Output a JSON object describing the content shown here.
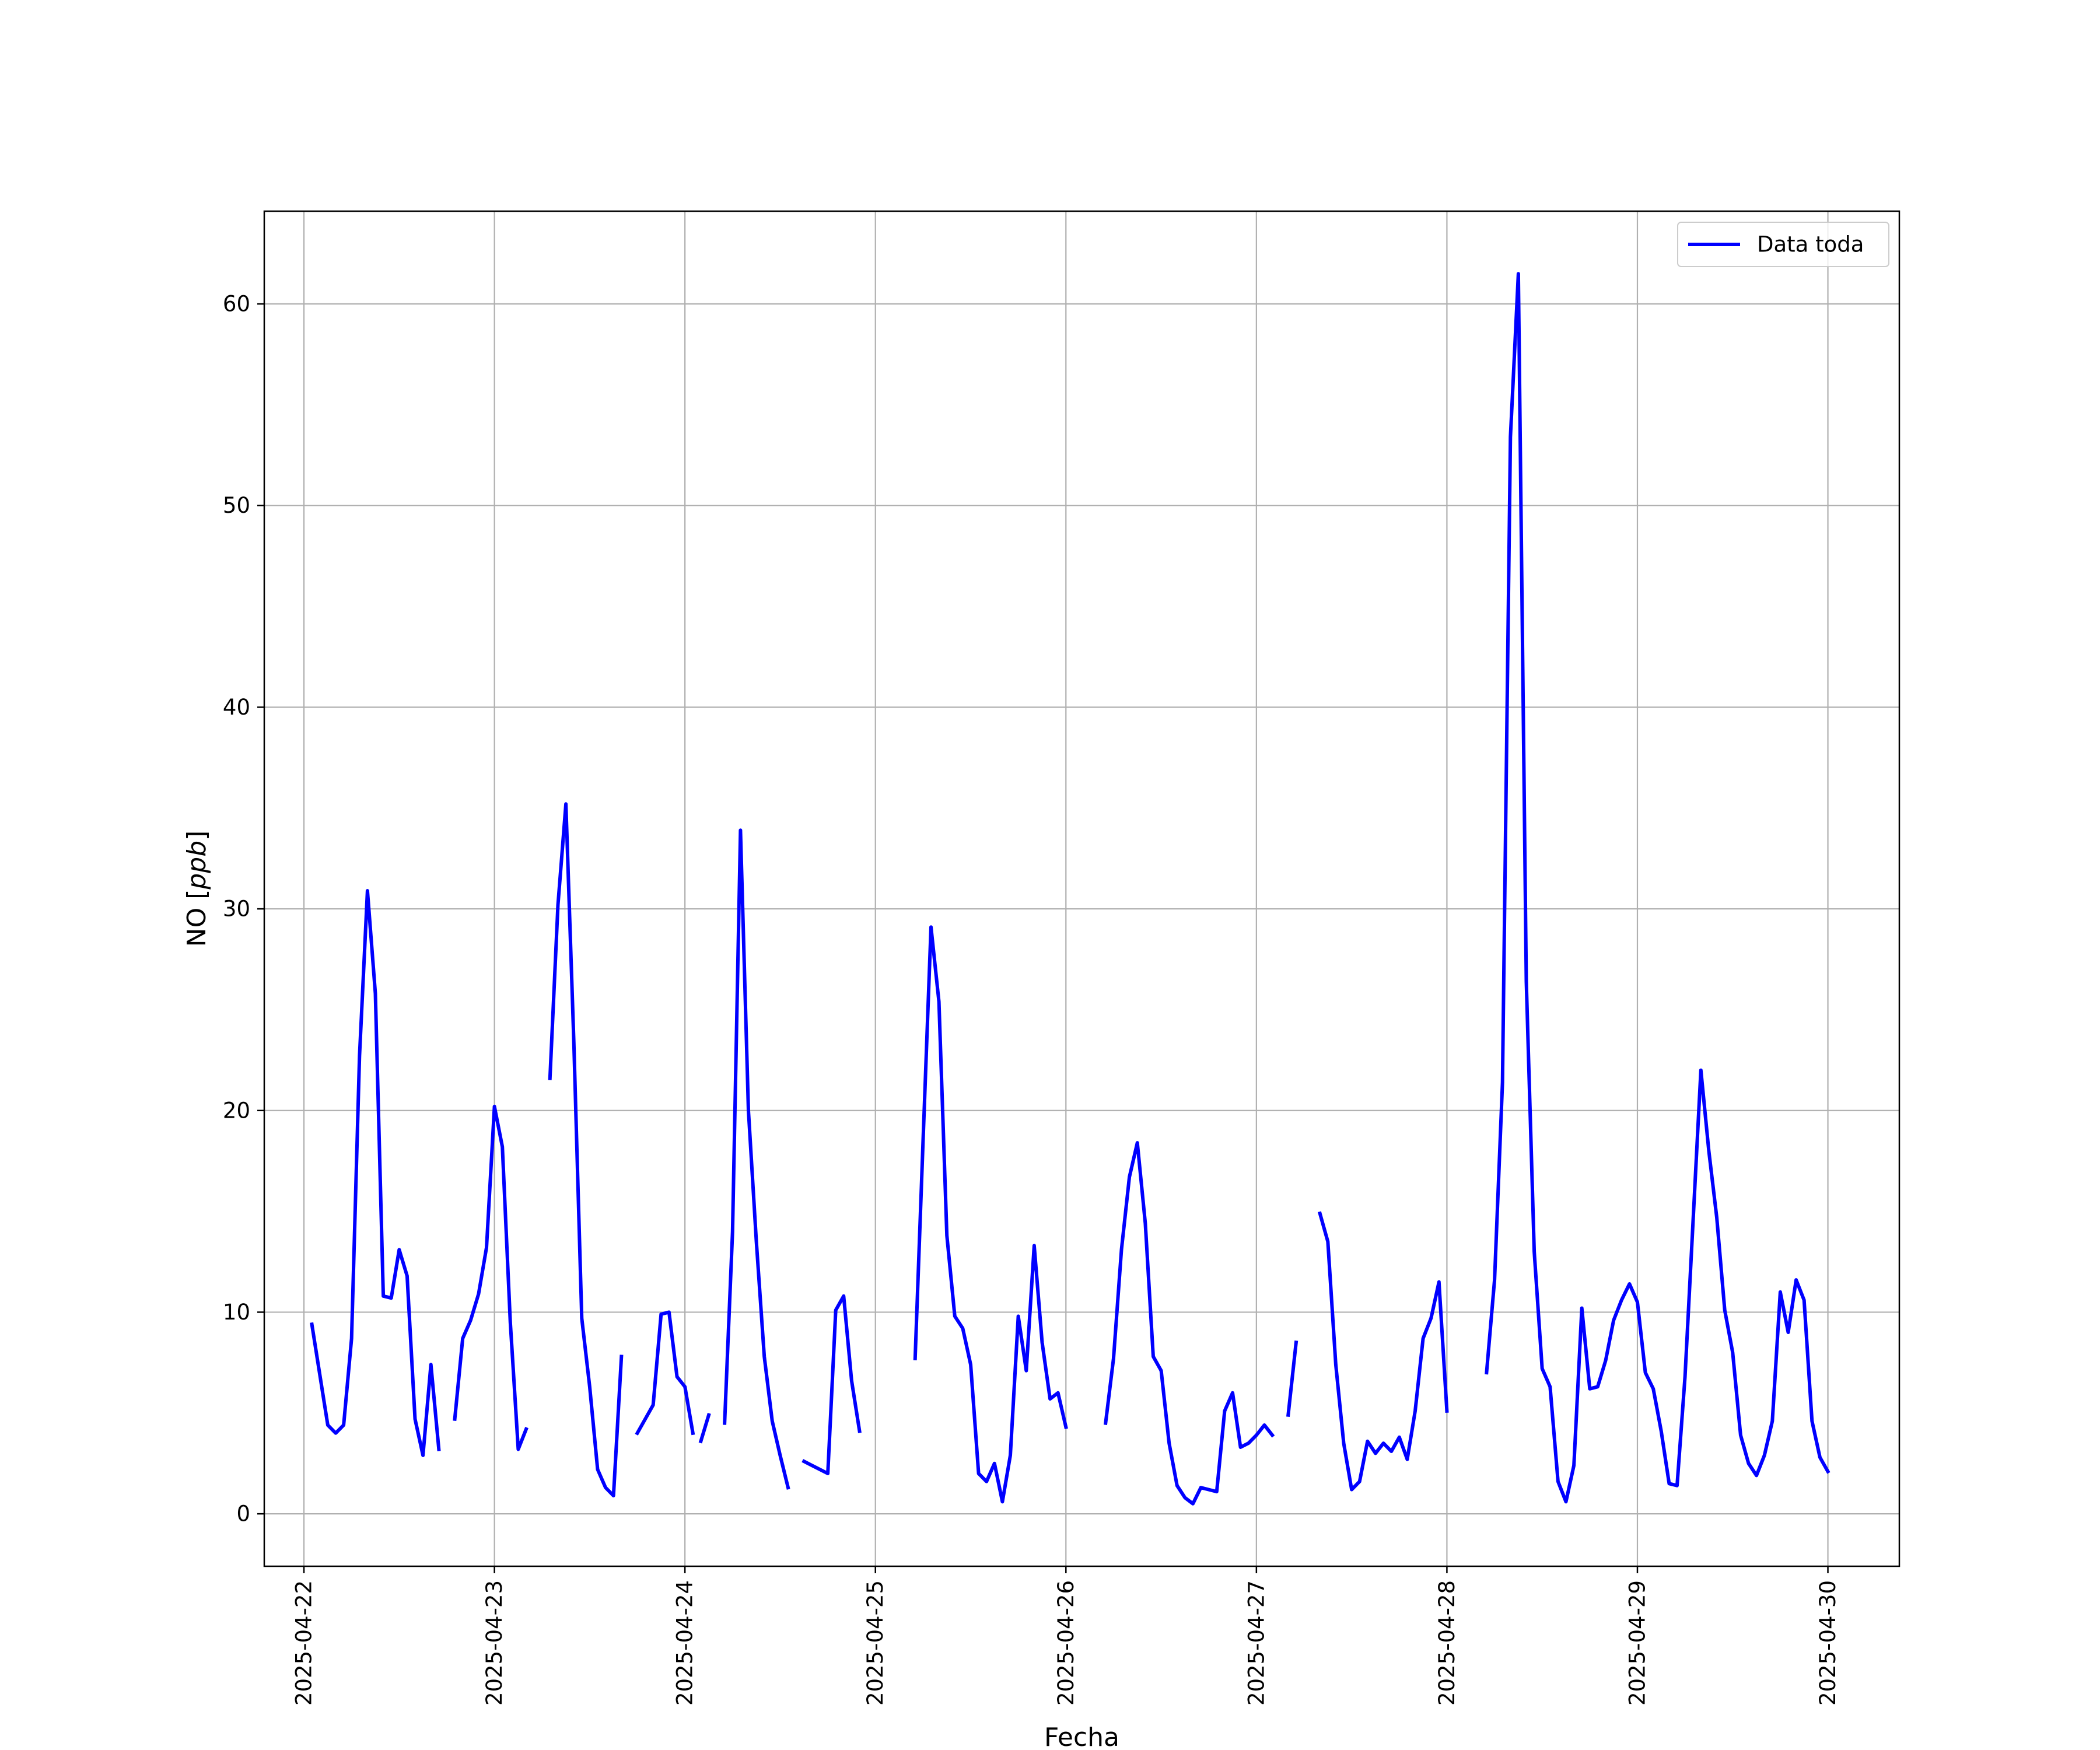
{
  "chart_data": {
    "type": "line",
    "title": "",
    "xlabel": "Fecha",
    "ylabel": "NO",
    "ylabel_unit": "ppb",
    "xlim": [
      "2025-04-21 19:00",
      "2025-04-30 09:00"
    ],
    "ylim": [
      -2.6,
      64.6
    ],
    "grid": true,
    "legend_position": "upper right",
    "x_ticks": [
      "2025-04-22",
      "2025-04-23",
      "2025-04-24",
      "2025-04-25",
      "2025-04-26",
      "2025-04-27",
      "2025-04-28",
      "2025-04-29",
      "2025-04-30"
    ],
    "y_ticks": [
      0,
      10,
      20,
      30,
      40,
      50,
      60
    ],
    "colors": {
      "line": "#0000ff",
      "grid": "#b0b0b0"
    },
    "series": [
      {
        "name": "Data toda",
        "segments": [
          [
            [
              "2025-04-22 01:00",
              9.4
            ],
            [
              "2025-04-22 03:00",
              4.4
            ],
            [
              "2025-04-22 04:00",
              4.0
            ],
            [
              "2025-04-22 05:00",
              4.4
            ],
            [
              "2025-04-22 06:00",
              8.7
            ],
            [
              "2025-04-22 07:00",
              22.7
            ],
            [
              "2025-04-22 08:00",
              30.9
            ],
            [
              "2025-04-22 09:00",
              25.8
            ],
            [
              "2025-04-22 10:00",
              10.8
            ],
            [
              "2025-04-22 11:00",
              10.7
            ],
            [
              "2025-04-22 12:00",
              13.1
            ],
            [
              "2025-04-22 13:00",
              11.8
            ],
            [
              "2025-04-22 14:00",
              4.7
            ],
            [
              "2025-04-22 15:00",
              2.9
            ],
            [
              "2025-04-22 16:00",
              7.4
            ],
            [
              "2025-04-22 17:00",
              3.2
            ]
          ],
          [
            [
              "2025-04-22 19:00",
              4.7
            ],
            [
              "2025-04-22 20:00",
              8.7
            ],
            [
              "2025-04-22 21:00",
              9.6
            ],
            [
              "2025-04-22 22:00",
              10.9
            ],
            [
              "2025-04-22 23:00",
              13.2
            ],
            [
              "2025-04-23 00:00",
              20.2
            ],
            [
              "2025-04-23 01:00",
              18.2
            ],
            [
              "2025-04-23 02:00",
              9.5
            ],
            [
              "2025-04-23 03:00",
              3.2
            ],
            [
              "2025-04-23 04:00",
              4.2
            ]
          ],
          [
            [
              "2025-04-23 07:00",
              21.6
            ],
            [
              "2025-04-23 08:00",
              30.2
            ],
            [
              "2025-04-23 09:00",
              35.2
            ],
            [
              "2025-04-23 10:00",
              23.4
            ],
            [
              "2025-04-23 11:00",
              9.7
            ],
            [
              "2025-04-23 12:00",
              6.3
            ],
            [
              "2025-04-23 13:00",
              2.2
            ],
            [
              "2025-04-23 14:00",
              1.3
            ],
            [
              "2025-04-23 15:00",
              0.9
            ],
            [
              "2025-04-23 16:00",
              7.8
            ]
          ],
          [
            [
              "2025-04-23 18:00",
              4.0
            ],
            [
              "2025-04-23 19:00",
              4.7
            ],
            [
              "2025-04-23 20:00",
              5.4
            ],
            [
              "2025-04-23 21:00",
              9.9
            ],
            [
              "2025-04-23 22:00",
              10.0
            ],
            [
              "2025-04-23 23:00",
              6.8
            ],
            [
              "2025-04-24 00:00",
              6.3
            ],
            [
              "2025-04-24 01:00",
              4.0
            ]
          ],
          [
            [
              "2025-04-24 02:00",
              3.6
            ],
            [
              "2025-04-24 03:00",
              4.9
            ]
          ],
          [
            [
              "2025-04-24 05:00",
              4.5
            ],
            [
              "2025-04-24 06:00",
              14.0
            ],
            [
              "2025-04-24 07:00",
              33.9
            ],
            [
              "2025-04-24 08:00",
              20.0
            ],
            [
              "2025-04-24 09:00",
              13.5
            ],
            [
              "2025-04-24 10:00",
              7.8
            ],
            [
              "2025-04-24 11:00",
              4.6
            ],
            [
              "2025-04-24 12:00",
              2.9
            ],
            [
              "2025-04-24 13:00",
              1.3
            ]
          ],
          [
            [
              "2025-04-24 15:00",
              2.6
            ],
            [
              "2025-04-24 16:00",
              2.4
            ],
            [
              "2025-04-24 17:00",
              2.2
            ],
            [
              "2025-04-24 18:00",
              2.0
            ],
            [
              "2025-04-24 19:00",
              10.1
            ],
            [
              "2025-04-24 20:00",
              10.8
            ],
            [
              "2025-04-24 21:00",
              6.6
            ],
            [
              "2025-04-24 22:00",
              4.1
            ]
          ],
          [
            [
              "2025-04-25 05:00",
              7.7
            ],
            [
              "2025-04-25 06:00",
              18.5
            ],
            [
              "2025-04-25 07:00",
              29.1
            ],
            [
              "2025-04-25 08:00",
              25.4
            ],
            [
              "2025-04-25 09:00",
              13.8
            ],
            [
              "2025-04-25 10:00",
              9.8
            ],
            [
              "2025-04-25 11:00",
              9.2
            ],
            [
              "2025-04-25 12:00",
              7.4
            ],
            [
              "2025-04-25 13:00",
              2.0
            ],
            [
              "2025-04-25 14:00",
              1.6
            ],
            [
              "2025-04-25 15:00",
              2.5
            ],
            [
              "2025-04-25 16:00",
              0.6
            ],
            [
              "2025-04-25 17:00",
              2.9
            ],
            [
              "2025-04-25 18:00",
              9.8
            ],
            [
              "2025-04-25 19:00",
              7.1
            ],
            [
              "2025-04-25 20:00",
              13.3
            ],
            [
              "2025-04-25 21:00",
              8.5
            ],
            [
              "2025-04-25 22:00",
              5.7
            ],
            [
              "2025-04-25 23:00",
              6.0
            ],
            [
              "2025-04-26 00:00",
              4.3
            ]
          ],
          [
            [
              "2025-04-26 05:00",
              4.5
            ],
            [
              "2025-04-26 06:00",
              7.7
            ],
            [
              "2025-04-26 07:00",
              13.1
            ],
            [
              "2025-04-26 08:00",
              16.7
            ],
            [
              "2025-04-26 09:00",
              18.4
            ],
            [
              "2025-04-26 10:00",
              14.4
            ],
            [
              "2025-04-26 11:00",
              7.8
            ],
            [
              "2025-04-26 12:00",
              7.1
            ],
            [
              "2025-04-26 13:00",
              3.5
            ],
            [
              "2025-04-26 14:00",
              1.4
            ],
            [
              "2025-04-26 15:00",
              0.8
            ],
            [
              "2025-04-26 16:00",
              0.5
            ],
            [
              "2025-04-26 17:00",
              1.3
            ],
            [
              "2025-04-26 18:00",
              1.2
            ],
            [
              "2025-04-26 19:00",
              1.1
            ],
            [
              "2025-04-26 20:00",
              5.1
            ],
            [
              "2025-04-26 21:00",
              6.0
            ],
            [
              "2025-04-26 22:00",
              3.3
            ],
            [
              "2025-04-26 23:00",
              3.5
            ],
            [
              "2025-04-27 00:00",
              3.9
            ],
            [
              "2025-04-27 01:00",
              4.4
            ],
            [
              "2025-04-27 02:00",
              3.9
            ]
          ],
          [
            [
              "2025-04-27 04:00",
              4.9
            ],
            [
              "2025-04-27 05:00",
              8.5
            ]
          ],
          [
            [
              "2025-04-27 08:00",
              14.9
            ],
            [
              "2025-04-27 09:00",
              13.5
            ],
            [
              "2025-04-27 10:00",
              7.4
            ],
            [
              "2025-04-27 11:00",
              3.5
            ],
            [
              "2025-04-27 12:00",
              1.2
            ],
            [
              "2025-04-27 13:00",
              1.6
            ],
            [
              "2025-04-27 14:00",
              3.6
            ],
            [
              "2025-04-27 15:00",
              3.0
            ],
            [
              "2025-04-27 16:00",
              3.5
            ],
            [
              "2025-04-27 17:00",
              3.1
            ],
            [
              "2025-04-27 18:00",
              3.8
            ],
            [
              "2025-04-27 19:00",
              2.7
            ],
            [
              "2025-04-27 20:00",
              5.1
            ],
            [
              "2025-04-27 21:00",
              8.7
            ],
            [
              "2025-04-27 22:00",
              9.7
            ],
            [
              "2025-04-27 23:00",
              11.5
            ],
            [
              "2025-04-28 00:00",
              5.1
            ]
          ],
          [
            [
              "2025-04-28 05:00",
              7.0
            ],
            [
              "2025-04-28 06:00",
              11.6
            ],
            [
              "2025-04-28 07:00",
              21.4
            ],
            [
              "2025-04-28 08:00",
              53.4
            ],
            [
              "2025-04-28 09:00",
              61.5
            ],
            [
              "2025-04-28 10:00",
              26.4
            ],
            [
              "2025-04-28 11:00",
              13.0
            ],
            [
              "2025-04-28 12:00",
              7.2
            ],
            [
              "2025-04-28 13:00",
              6.3
            ],
            [
              "2025-04-28 14:00",
              1.6
            ],
            [
              "2025-04-28 15:00",
              0.6
            ],
            [
              "2025-04-28 16:00",
              2.4
            ],
            [
              "2025-04-28 17:00",
              10.2
            ],
            [
              "2025-04-28 18:00",
              6.2
            ],
            [
              "2025-04-28 19:00",
              6.3
            ],
            [
              "2025-04-28 20:00",
              7.6
            ],
            [
              "2025-04-28 21:00",
              9.6
            ],
            [
              "2025-04-28 22:00",
              10.6
            ],
            [
              "2025-04-28 23:00",
              11.4
            ],
            [
              "2025-04-29 00:00",
              10.5
            ],
            [
              "2025-04-29 01:00",
              7.0
            ],
            [
              "2025-04-29 02:00",
              6.2
            ],
            [
              "2025-04-29 03:00",
              4.1
            ],
            [
              "2025-04-29 04:00",
              1.5
            ],
            [
              "2025-04-29 05:00",
              1.4
            ],
            [
              "2025-04-29 06:00",
              6.8
            ],
            [
              "2025-04-29 07:00",
              14.4
            ],
            [
              "2025-04-29 08:00",
              22.0
            ],
            [
              "2025-04-29 09:00",
              18.0
            ],
            [
              "2025-04-29 10:00",
              14.7
            ],
            [
              "2025-04-29 11:00",
              10.1
            ],
            [
              "2025-04-29 12:00",
              8.0
            ],
            [
              "2025-04-29 13:00",
              3.9
            ],
            [
              "2025-04-29 14:00",
              2.5
            ],
            [
              "2025-04-29 15:00",
              1.9
            ],
            [
              "2025-04-29 16:00",
              2.9
            ],
            [
              "2025-04-29 17:00",
              4.6
            ],
            [
              "2025-04-29 18:00",
              11.0
            ],
            [
              "2025-04-29 19:00",
              9.0
            ],
            [
              "2025-04-29 20:00",
              11.6
            ],
            [
              "2025-04-29 21:00",
              10.6
            ],
            [
              "2025-04-29 22:00",
              4.6
            ],
            [
              "2025-04-29 23:00",
              2.8
            ],
            [
              "2025-04-30 00:00",
              2.1
            ]
          ]
        ]
      }
    ]
  }
}
